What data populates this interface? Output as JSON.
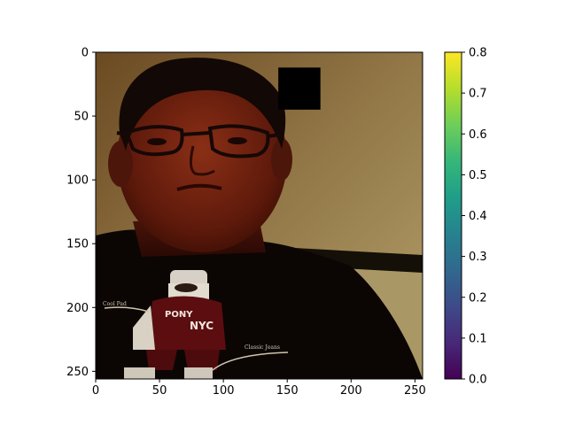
{
  "chart_data": {
    "type": "heatmap",
    "title": "",
    "xlabel": "",
    "ylabel": "",
    "xlim": [
      0,
      256
    ],
    "ylim": [
      256,
      0
    ],
    "x_ticks": [
      "0",
      "50",
      "100",
      "150",
      "200",
      "250"
    ],
    "y_ticks": [
      "0",
      "50",
      "100",
      "150",
      "200",
      "250"
    ],
    "image": {
      "content": "photograph of a person wearing glasses and a dark t-shirt, rendered with a dark/reddish tone",
      "occlusion_patch": {
        "x": [
          143,
          176
        ],
        "y": [
          12,
          45
        ],
        "color": "#000000"
      },
      "shirt_text": {
        "left": "PONY",
        "right": "NYC",
        "label_1": "Cool Pad",
        "label_2": "Classic Jeans"
      }
    },
    "colorbar": {
      "colormap": "viridis",
      "range": [
        0.0,
        0.8
      ],
      "ticks": [
        "0.0",
        "0.1",
        "0.2",
        "0.3",
        "0.4",
        "0.5",
        "0.6",
        "0.7",
        "0.8"
      ],
      "colors": [
        "#440154",
        "#482878",
        "#3e4a89",
        "#31688e",
        "#26828e",
        "#1f9e89",
        "#35b779",
        "#6ece58",
        "#b5de2b",
        "#fde725"
      ]
    }
  }
}
